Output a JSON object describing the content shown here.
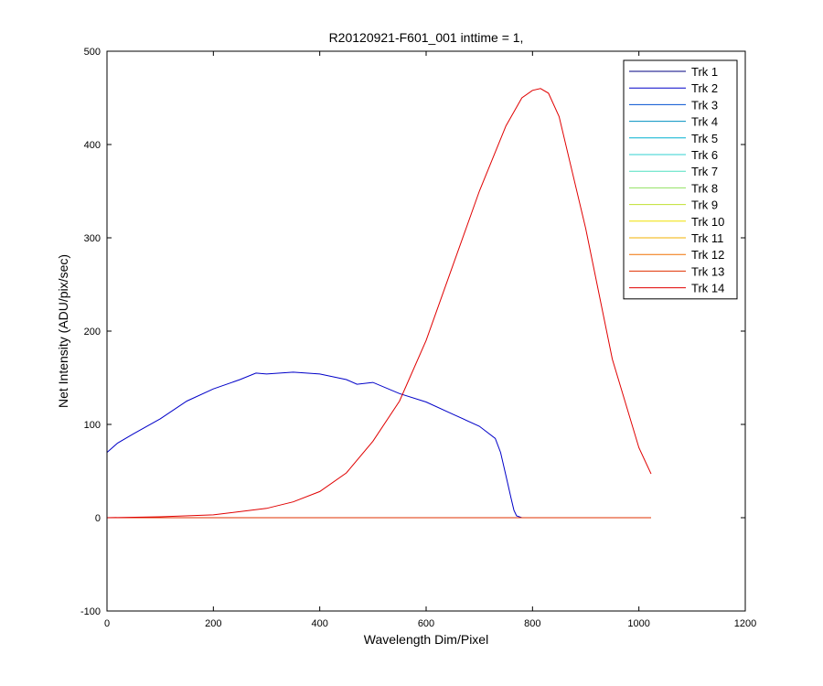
{
  "chart_data": {
    "type": "line",
    "title": "R20120921-F601_001 inttime = 1,",
    "xlabel": "Wavelength Dim/Pixel",
    "ylabel": "Net Intensity (ADU/pix/sec)",
    "xlim": [
      0,
      1200
    ],
    "ylim": [
      -100,
      500
    ],
    "xticks": [
      0,
      200,
      400,
      600,
      800,
      1000,
      1200
    ],
    "yticks": [
      -100,
      0,
      100,
      200,
      300,
      400,
      500
    ],
    "grid": false,
    "legend_position": "top-right",
    "series": [
      {
        "name": "Trk 1",
        "color": "#000080",
        "x": [
          0,
          1023
        ],
        "y": [
          0,
          0
        ]
      },
      {
        "name": "Trk 2",
        "color": "#0000c8",
        "x": [
          0,
          20,
          50,
          100,
          150,
          200,
          250,
          280,
          300,
          350,
          400,
          450,
          470,
          500,
          550,
          600,
          650,
          700,
          730,
          740,
          750,
          760,
          765,
          770,
          780,
          800,
          1023
        ],
        "y": [
          70,
          80,
          90,
          106,
          125,
          138,
          148,
          155,
          154,
          156,
          154,
          148,
          143,
          145,
          133,
          124,
          111,
          98,
          85,
          70,
          45,
          20,
          8,
          2,
          0,
          0,
          0
        ]
      },
      {
        "name": "Trk 3",
        "color": "#0050d0",
        "x": [
          0,
          1023
        ],
        "y": [
          0,
          0
        ]
      },
      {
        "name": "Trk 4",
        "color": "#0090c0",
        "x": [
          0,
          1023
        ],
        "y": [
          0,
          0
        ]
      },
      {
        "name": "Trk 5",
        "color": "#00b0d0",
        "x": [
          0,
          1023
        ],
        "y": [
          0,
          0
        ]
      },
      {
        "name": "Trk 6",
        "color": "#30d0d0",
        "x": [
          0,
          1023
        ],
        "y": [
          0,
          0
        ]
      },
      {
        "name": "Trk 7",
        "color": "#50e0c0",
        "x": [
          0,
          1023
        ],
        "y": [
          0,
          0
        ]
      },
      {
        "name": "Trk 8",
        "color": "#90e060",
        "x": [
          0,
          1023
        ],
        "y": [
          0,
          0
        ]
      },
      {
        "name": "Trk 9",
        "color": "#c0e030",
        "x": [
          0,
          1023
        ],
        "y": [
          0,
          0
        ]
      },
      {
        "name": "Trk 10",
        "color": "#f0e000",
        "x": [
          0,
          1023
        ],
        "y": [
          0,
          0
        ]
      },
      {
        "name": "Trk 11",
        "color": "#f0b000",
        "x": [
          0,
          1023
        ],
        "y": [
          0,
          0
        ]
      },
      {
        "name": "Trk 12",
        "color": "#f07000",
        "x": [
          0,
          1023
        ],
        "y": [
          0,
          0
        ]
      },
      {
        "name": "Trk 13",
        "color": "#e03000",
        "x": [
          0,
          1023
        ],
        "y": [
          0,
          0
        ]
      },
      {
        "name": "Trk 14",
        "color": "#e00000",
        "x": [
          0,
          100,
          200,
          300,
          350,
          400,
          450,
          500,
          550,
          600,
          650,
          700,
          750,
          780,
          800,
          815,
          830,
          850,
          900,
          950,
          1000,
          1023
        ],
        "y": [
          0,
          1,
          3,
          10,
          17,
          28,
          48,
          82,
          125,
          190,
          270,
          350,
          420,
          450,
          458,
          460,
          455,
          430,
          310,
          170,
          75,
          47
        ]
      }
    ]
  }
}
